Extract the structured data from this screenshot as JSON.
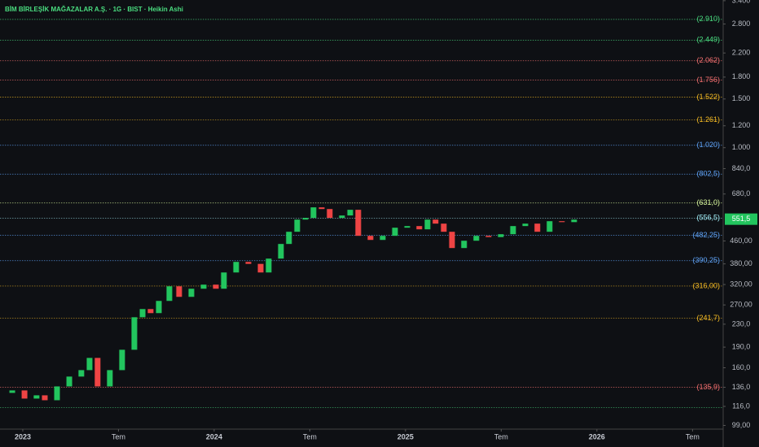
{
  "chart_data": {
    "type": "candlestick",
    "title": "BİM BİRLEŞİK MAĞAZALAR A.Ş. · 1G · BIST · Heikin Ashi",
    "log_scale": true,
    "up_color": "#22c55e",
    "down_color": "#ef4444",
    "x": [
      2022.945,
      2023.009,
      2023.072,
      2023.115,
      2023.179,
      2023.243,
      2023.306,
      2023.349,
      2023.391,
      2023.455,
      2023.519,
      2023.583,
      2023.626,
      2023.668,
      2023.711,
      2023.766,
      2023.817,
      2023.881,
      2023.945,
      2024.009,
      2024.051,
      2024.115,
      2024.179,
      2024.243,
      2024.285,
      2024.349,
      2024.391,
      2024.434,
      2024.477,
      2024.519,
      2024.562,
      2024.604,
      2024.668,
      2024.711,
      2024.753,
      2024.817,
      2024.881,
      2024.945,
      2025.009,
      2025.072,
      2025.115,
      2025.157,
      2025.2,
      2025.243,
      2025.306,
      2025.37,
      2025.434,
      2025.498,
      2025.562,
      2025.626,
      2025.689,
      2025.753,
      2025.817,
      2025.881
    ],
    "open": [
      129.8,
      132.5,
      123.8,
      127.2,
      122.1,
      137.0,
      148.7,
      156.9,
      173.7,
      137.0,
      156.9,
      185.9,
      243.7,
      260.9,
      252.2,
      279.2,
      315.3,
      288.8,
      309.0,
      319.7,
      309.0,
      353.8,
      386.4,
      380.0,
      353.8,
      397.1,
      448.6,
      496.5,
      549.5,
      557.2,
      608.5,
      600.0,
      557.2,
      568.6,
      596.2,
      480.0,
      463.9,
      480.0,
      513.6,
      520.6,
      506.7,
      549.5,
      531.3,
      496.5,
      433.6,
      460.8,
      480.0,
      475.0,
      486.5,
      520.6,
      531.3,
      496.5,
      542.2,
      538.0
    ],
    "close": [
      132.5,
      123.8,
      127.2,
      122.1,
      137.0,
      148.7,
      156.9,
      173.7,
      137.0,
      156.9,
      185.9,
      243.7,
      260.9,
      252.2,
      279.2,
      315.3,
      288.8,
      309.0,
      319.7,
      309.0,
      353.8,
      386.4,
      380.0,
      353.8,
      397.1,
      448.6,
      496.5,
      549.5,
      557.2,
      608.5,
      600.0,
      557.2,
      568.6,
      596.2,
      480.0,
      463.9,
      480.0,
      513.6,
      520.6,
      506.7,
      549.5,
      531.3,
      496.5,
      433.6,
      460.8,
      480.0,
      475.0,
      486.5,
      520.6,
      531.3,
      496.5,
      542.2,
      538.0,
      549.5
    ],
    "xlim": [
      2022.881,
      2026.66
    ],
    "xticks": [
      2023,
      {
        "value": 2023.5,
        "label": "Tem"
      },
      2024,
      {
        "value": 2024.5,
        "label": "Tem"
      },
      2025,
      {
        "value": 2025.5,
        "label": "Tem"
      },
      2026,
      {
        "value": 2026.5,
        "label": "Tem"
      }
    ],
    "ylim": [
      96,
      3420
    ],
    "yticks": [
      {
        "value": 99,
        "label": "99,00"
      },
      {
        "value": 116,
        "label": "116,0"
      },
      {
        "value": 136,
        "label": "136,0"
      },
      {
        "value": 160,
        "label": "160,0"
      },
      {
        "value": 190,
        "label": "190,0"
      },
      {
        "value": 230,
        "label": "230,0"
      },
      {
        "value": 270,
        "label": "270,00"
      },
      {
        "value": 320,
        "label": "320,00"
      },
      {
        "value": 380,
        "label": "380,00"
      },
      {
        "value": 460,
        "label": "460,00"
      },
      {
        "value": 680,
        "label": "680,0"
      },
      {
        "value": 840,
        "label": "840,0"
      },
      {
        "value": 1000,
        "label": "1.000"
      },
      {
        "value": 1200,
        "label": "1.200"
      },
      {
        "value": 1500,
        "label": "1.500"
      },
      {
        "value": 1800,
        "label": "1.800"
      },
      {
        "value": 2200,
        "label": "2.200"
      },
      {
        "value": 2800,
        "label": "2.800"
      },
      {
        "value": 3400,
        "label": "3.400"
      }
    ],
    "levels": [
      {
        "value": 2910,
        "label": "(2.910)",
        "color": "#4ade80"
      },
      {
        "value": 2449,
        "label": "(2.449)",
        "color": "#4ade80"
      },
      {
        "value": 2062,
        "label": "(2.062)",
        "color": "#f87171"
      },
      {
        "value": 1756,
        "label": "(1.756)",
        "color": "#f87171"
      },
      {
        "value": 1522,
        "label": "(1.522)",
        "color": "#fbbf24"
      },
      {
        "value": 1261,
        "label": "(1.261)",
        "color": "#fbbf24"
      },
      {
        "value": 1020,
        "label": "(1.020)",
        "color": "#60a5fa"
      },
      {
        "value": 802.5,
        "label": "(802,5)",
        "color": "#60a5fa"
      },
      {
        "value": 631.0,
        "label": "(631,0)",
        "color": "#d9f99d"
      },
      {
        "value": 556.5,
        "label": "(556,5)",
        "color": "#a5f3fc"
      },
      {
        "value": 482.25,
        "label": "(482,25)",
        "color": "#60a5fa"
      },
      {
        "value": 390.25,
        "label": "(390,25)",
        "color": "#60a5fa"
      },
      {
        "value": 316.0,
        "label": "(316,00)",
        "color": "#fbbf24"
      },
      {
        "value": 241.7,
        "label": "(241,7)",
        "color": "#fbbf24"
      },
      {
        "value": 135.9,
        "label": "(135,9)",
        "color": "#f87171"
      },
      {
        "value": 115,
        "color": "#4ade80"
      }
    ],
    "last_price": {
      "value": 551.5,
      "label": "551,5",
      "color": "#22c55e"
    }
  }
}
